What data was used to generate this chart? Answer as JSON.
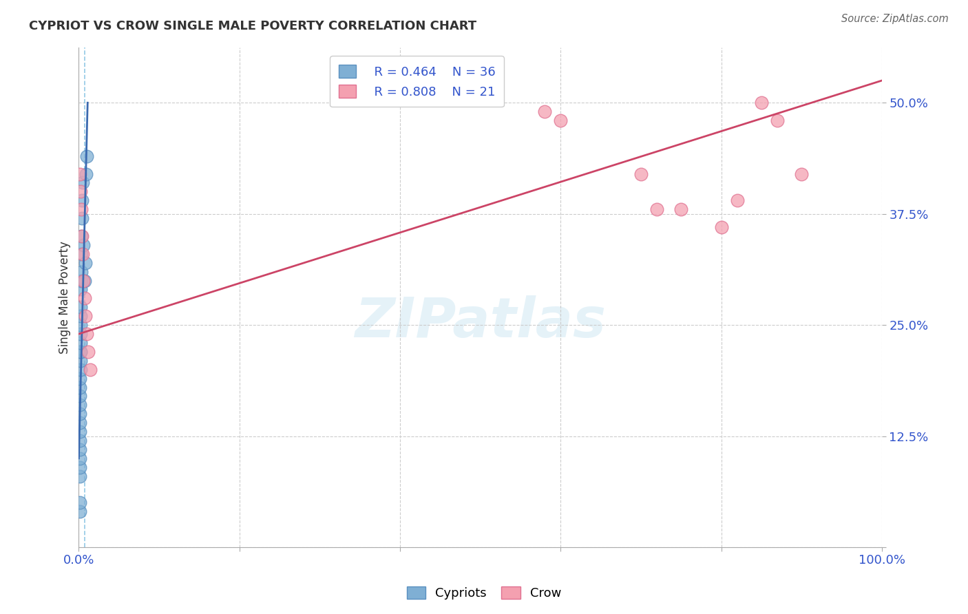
{
  "title": "CYPRIOT VS CROW SINGLE MALE POVERTY CORRELATION CHART",
  "source": "Source: ZipAtlas.com",
  "ylabel": "Single Male Poverty",
  "watermark": "ZIPatlas",
  "legend_cypriot_R": "R = 0.464",
  "legend_cypriot_N": "N = 36",
  "legend_crow_R": "R = 0.808",
  "legend_crow_N": "N = 21",
  "xlim": [
    0.0,
    1.0
  ],
  "ylim": [
    0.0,
    0.5625
  ],
  "yticks": [
    0.0,
    0.125,
    0.25,
    0.375,
    0.5
  ],
  "ytick_labels": [
    "",
    "12.5%",
    "25.0%",
    "37.5%",
    "50.0%"
  ],
  "xticks": [
    0.0,
    0.2,
    0.4,
    0.6,
    0.8,
    1.0
  ],
  "xtick_labels": [
    "0.0%",
    "",
    "",
    "",
    "",
    "100.0%"
  ],
  "cypriot_color": "#7fafd4",
  "crow_color": "#f4a0b0",
  "cypriot_edge_color": "#5a90c0",
  "crow_edge_color": "#e07090",
  "cypriot_line_color": "#3a69b0",
  "crow_line_color": "#cc4466",
  "bg_color": "#ffffff",
  "grid_color": "#cccccc",
  "tick_label_color": "#3355cc",
  "title_color": "#333333",
  "source_color": "#666666",
  "watermark_color": "#d0e8f4",
  "cypriot_x": [
    0.001,
    0.001,
    0.001,
    0.001,
    0.001,
    0.001,
    0.001,
    0.001,
    0.001,
    0.001,
    0.001,
    0.001,
    0.001,
    0.001,
    0.002,
    0.002,
    0.002,
    0.002,
    0.002,
    0.002,
    0.002,
    0.002,
    0.002,
    0.002,
    0.003,
    0.003,
    0.003,
    0.003,
    0.004,
    0.004,
    0.005,
    0.006,
    0.007,
    0.008,
    0.009,
    0.01
  ],
  "cypriot_y": [
    0.04,
    0.05,
    0.08,
    0.09,
    0.1,
    0.11,
    0.12,
    0.13,
    0.14,
    0.15,
    0.16,
    0.17,
    0.18,
    0.19,
    0.2,
    0.21,
    0.22,
    0.22,
    0.23,
    0.24,
    0.25,
    0.26,
    0.27,
    0.29,
    0.3,
    0.31,
    0.33,
    0.35,
    0.37,
    0.39,
    0.41,
    0.34,
    0.3,
    0.32,
    0.42,
    0.44
  ],
  "crow_x": [
    0.001,
    0.002,
    0.003,
    0.004,
    0.005,
    0.006,
    0.007,
    0.008,
    0.01,
    0.012,
    0.014,
    0.58,
    0.6,
    0.7,
    0.72,
    0.75,
    0.8,
    0.82,
    0.85,
    0.87,
    0.9
  ],
  "crow_y": [
    0.42,
    0.4,
    0.38,
    0.35,
    0.33,
    0.3,
    0.28,
    0.26,
    0.24,
    0.22,
    0.2,
    0.49,
    0.48,
    0.42,
    0.38,
    0.38,
    0.36,
    0.39,
    0.5,
    0.48,
    0.42
  ],
  "cypriot_trend_x": [
    0.0,
    0.011
  ],
  "cypriot_trend_y": [
    0.1,
    0.5
  ],
  "crow_trend_x": [
    0.0,
    1.0
  ],
  "crow_trend_y": [
    0.24,
    0.525
  ],
  "dashed_vline_x": 0.007,
  "dashed_vline_color": "#7fbfe0"
}
